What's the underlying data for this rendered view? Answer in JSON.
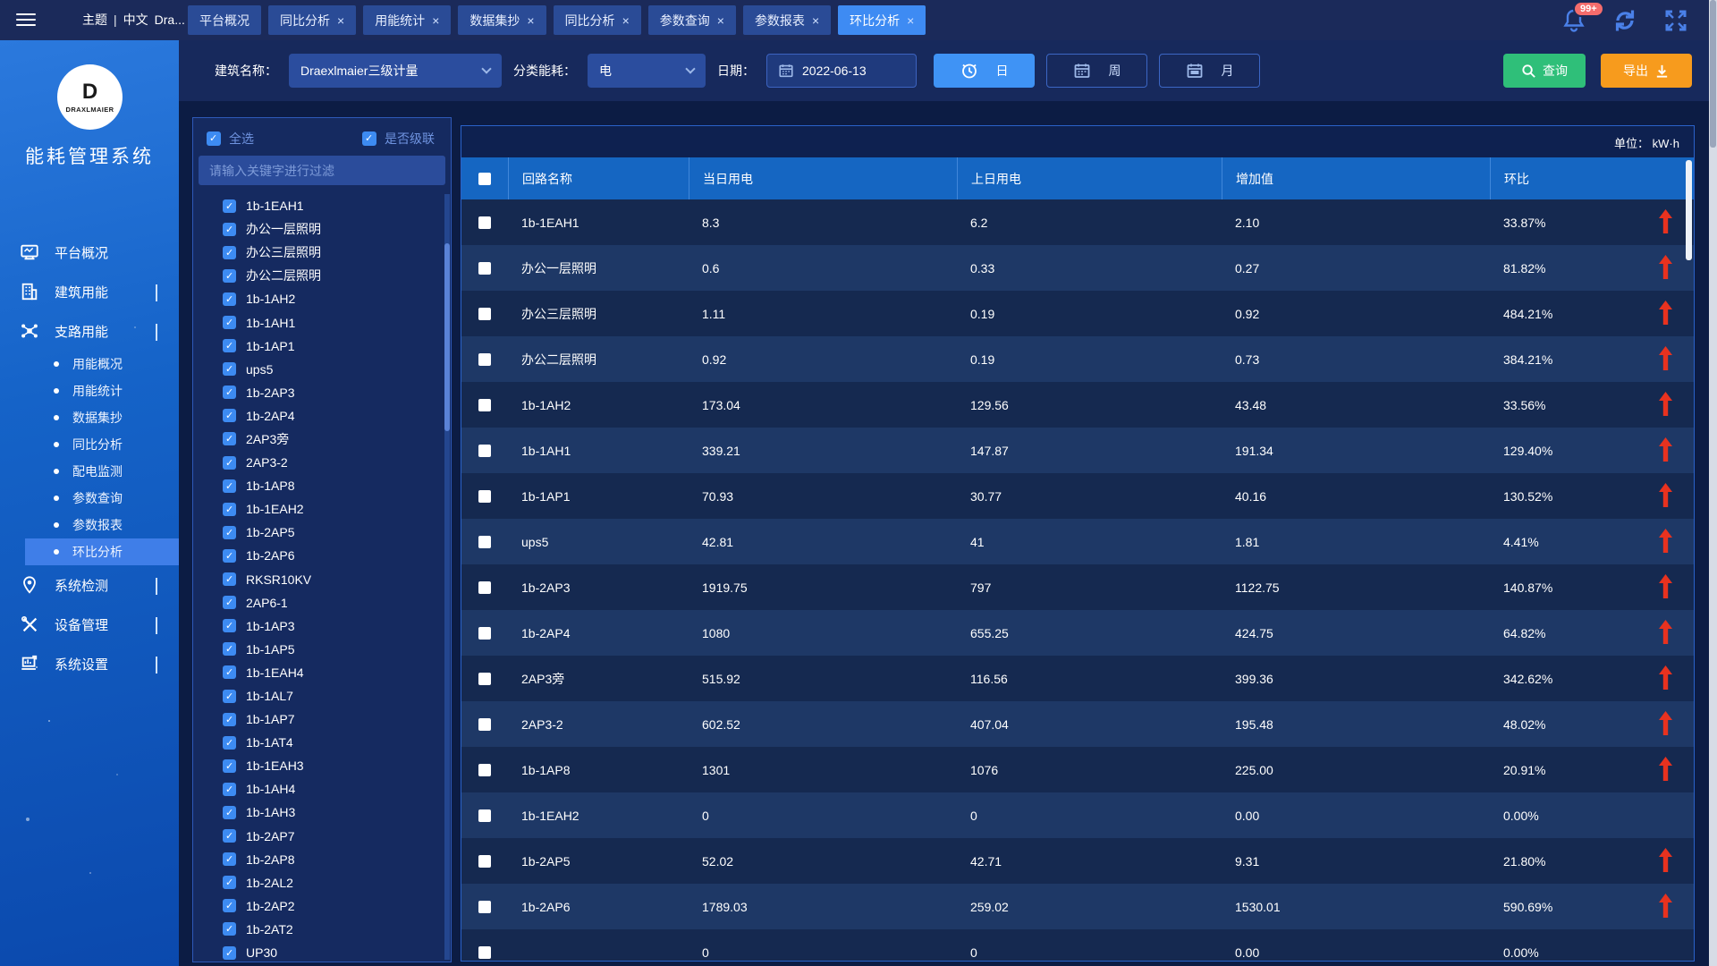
{
  "topbar": {
    "theme": "主题",
    "sep": "|",
    "lang": "中文",
    "user": "Dra...",
    "caret": "▼",
    "badge": "99+"
  },
  "tabs": [
    {
      "label": "平台概况",
      "closable": false,
      "active": false
    },
    {
      "label": "同比分析",
      "closable": true,
      "active": false
    },
    {
      "label": "用能统计",
      "closable": true,
      "active": false
    },
    {
      "label": "数据集抄",
      "closable": true,
      "active": false
    },
    {
      "label": "同比分析",
      "closable": true,
      "active": false
    },
    {
      "label": "参数查询",
      "closable": true,
      "active": false
    },
    {
      "label": "参数报表",
      "closable": true,
      "active": false
    },
    {
      "label": "环比分析",
      "closable": true,
      "active": true
    }
  ],
  "filter": {
    "building_label": "建筑名称：",
    "building_value": "Draexlmaier三级计量",
    "category_label": "分类能耗：",
    "category_value": "电",
    "date_label": "日期：",
    "date_value": "2022-06-13",
    "day_label": "日",
    "week_label": "周",
    "month_label": "月",
    "query_label": "查询",
    "export_label": "导出"
  },
  "sidebar": {
    "brand_letter": "D",
    "brand": "DRAXLMAIER",
    "app_title": "能耗管理系统",
    "menu": [
      {
        "label": "平台概况",
        "icon": "dashboard-monitor-icon",
        "chevron": null
      },
      {
        "label": "建筑用能",
        "icon": "building-icon",
        "chevron": "down"
      },
      {
        "label": "支路用能",
        "icon": "branch-circuit-icon",
        "chevron": "up",
        "children": [
          {
            "label": "用能概况",
            "active": false
          },
          {
            "label": "用能统计",
            "active": false
          },
          {
            "label": "数据集抄",
            "active": false
          },
          {
            "label": "同比分析",
            "active": false
          },
          {
            "label": "配电监测",
            "active": false
          },
          {
            "label": "参数查询",
            "active": false
          },
          {
            "label": "参数报表",
            "active": false
          },
          {
            "label": "环比分析",
            "active": true
          }
        ]
      },
      {
        "label": "系统检测",
        "icon": "location-pin-icon",
        "chevron": "down"
      },
      {
        "label": "设备管理",
        "icon": "tools-icon",
        "chevron": "down"
      },
      {
        "label": "系统设置",
        "icon": "system-settings-icon",
        "chevron": "down"
      }
    ]
  },
  "circuit_panel": {
    "select_all_label": "全选",
    "cascade_label": "是否级联",
    "search_placeholder": "请输入关键字进行过滤",
    "circuits": [
      "1b-1EAH1",
      "办公一层照明",
      "办公三层照明",
      "办公二层照明",
      "1b-1AH2",
      "1b-1AH1",
      "1b-1AP1",
      "ups5",
      "1b-2AP3",
      "1b-2AP4",
      "2AP3旁",
      "2AP3-2",
      "1b-1AP8",
      "1b-1EAH2",
      "1b-2AP5",
      "1b-2AP6",
      "RKSR10KV",
      "2AP6-1",
      "1b-1AP3",
      "1b-1AP5",
      "1b-1EAH4",
      "1b-1AL7",
      "1b-1AP7",
      "1b-1AT4",
      "1b-1EAH3",
      "1b-1AH4",
      "1b-1AH3",
      "1b-2AP7",
      "1b-2AP8",
      "1b-2AL2",
      "1b-2AP2",
      "1b-2AT2",
      "UP30"
    ]
  },
  "table": {
    "unit_label": "单位： kW·h",
    "columns": [
      "回路名称",
      "当日用电",
      "上日用电",
      "增加值",
      "环比"
    ],
    "rows": [
      {
        "name": "1b-1EAH1",
        "today": "8.3",
        "yesterday": "6.2",
        "increase": "2.10",
        "ratio": "33.87%",
        "up": true
      },
      {
        "name": "办公一层照明",
        "today": "0.6",
        "yesterday": "0.33",
        "increase": "0.27",
        "ratio": "81.82%",
        "up": true
      },
      {
        "name": "办公三层照明",
        "today": "1.11",
        "yesterday": "0.19",
        "increase": "0.92",
        "ratio": "484.21%",
        "up": true
      },
      {
        "name": "办公二层照明",
        "today": "0.92",
        "yesterday": "0.19",
        "increase": "0.73",
        "ratio": "384.21%",
        "up": true
      },
      {
        "name": "1b-1AH2",
        "today": "173.04",
        "yesterday": "129.56",
        "increase": "43.48",
        "ratio": "33.56%",
        "up": true
      },
      {
        "name": "1b-1AH1",
        "today": "339.21",
        "yesterday": "147.87",
        "increase": "191.34",
        "ratio": "129.40%",
        "up": true
      },
      {
        "name": "1b-1AP1",
        "today": "70.93",
        "yesterday": "30.77",
        "increase": "40.16",
        "ratio": "130.52%",
        "up": true
      },
      {
        "name": "ups5",
        "today": "42.81",
        "yesterday": "41",
        "increase": "1.81",
        "ratio": "4.41%",
        "up": true
      },
      {
        "name": "1b-2AP3",
        "today": "1919.75",
        "yesterday": "797",
        "increase": "1122.75",
        "ratio": "140.87%",
        "up": true
      },
      {
        "name": "1b-2AP4",
        "today": "1080",
        "yesterday": "655.25",
        "increase": "424.75",
        "ratio": "64.82%",
        "up": true
      },
      {
        "name": "2AP3旁",
        "today": "515.92",
        "yesterday": "116.56",
        "increase": "399.36",
        "ratio": "342.62%",
        "up": true
      },
      {
        "name": "2AP3-2",
        "today": "602.52",
        "yesterday": "407.04",
        "increase": "195.48",
        "ratio": "48.02%",
        "up": true
      },
      {
        "name": "1b-1AP8",
        "today": "1301",
        "yesterday": "1076",
        "increase": "225.00",
        "ratio": "20.91%",
        "up": true
      },
      {
        "name": "1b-1EAH2",
        "today": "0",
        "yesterday": "0",
        "increase": "0.00",
        "ratio": "0.00%",
        "up": false
      },
      {
        "name": "1b-2AP5",
        "today": "52.02",
        "yesterday": "42.71",
        "increase": "9.31",
        "ratio": "21.80%",
        "up": true
      },
      {
        "name": "1b-2AP6",
        "today": "1789.03",
        "yesterday": "259.02",
        "increase": "1530.01",
        "ratio": "590.69%",
        "up": true
      },
      {
        "name": "",
        "today": "0",
        "yesterday": "0",
        "increase": "0.00",
        "ratio": "0.00%",
        "up": false
      }
    ]
  },
  "colors": {
    "accent_blue": "#3e8bf3",
    "header_blue": "#1566c2",
    "query_green": "#2fbf79",
    "export_orange": "#f79b1d",
    "arrow_red": "#e8321f",
    "badge_red": "#f56c6c"
  }
}
